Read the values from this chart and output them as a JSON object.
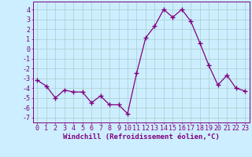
{
  "x": [
    0,
    1,
    2,
    3,
    4,
    5,
    6,
    7,
    8,
    9,
    10,
    11,
    12,
    13,
    14,
    15,
    16,
    17,
    18,
    19,
    20,
    21,
    22,
    23
  ],
  "y": [
    -3.2,
    -3.8,
    -5.0,
    -4.2,
    -4.4,
    -4.4,
    -5.5,
    -4.8,
    -5.7,
    -5.7,
    -6.6,
    -2.5,
    1.1,
    2.3,
    4.0,
    3.2,
    4.0,
    2.8,
    0.6,
    -1.7,
    -3.7,
    -2.7,
    -4.0,
    -4.3
  ],
  "xlim": [
    -0.5,
    23.5
  ],
  "ylim": [
    -7.5,
    4.8
  ],
  "yticks": [
    -7,
    -6,
    -5,
    -4,
    -3,
    -2,
    -1,
    0,
    1,
    2,
    3,
    4
  ],
  "xticks": [
    0,
    1,
    2,
    3,
    4,
    5,
    6,
    7,
    8,
    9,
    10,
    11,
    12,
    13,
    14,
    15,
    16,
    17,
    18,
    19,
    20,
    21,
    22,
    23
  ],
  "line_color": "#800080",
  "marker_color": "#800080",
  "bg_color": "#cceeff",
  "grid_color": "#aacccc",
  "xlabel": "Windchill (Refroidissement éolien,°C)",
  "xlabel_fontsize": 6.5,
  "tick_fontsize": 6.0,
  "marker": "+",
  "marker_size": 4.0,
  "line_width": 0.9
}
